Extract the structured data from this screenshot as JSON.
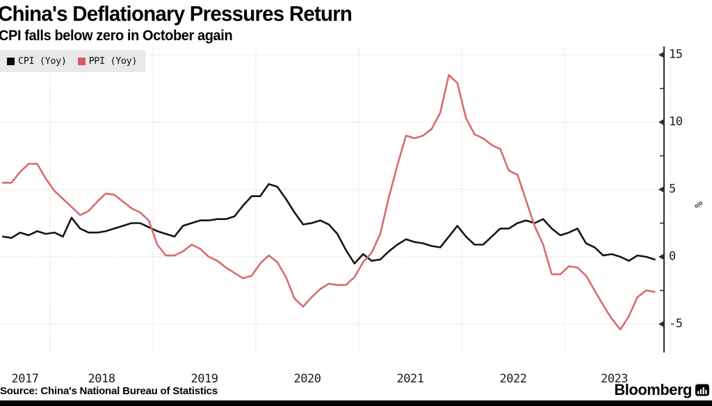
{
  "chart_data": {
    "type": "line",
    "title": "China's Deflationary Pressures Return",
    "subtitle": "CPI falls below zero in October again",
    "unit_label": "%",
    "frequency": "monthly",
    "x_start": "2017-06",
    "x_end": "2023-10",
    "x_year_labels": [
      "2017",
      "2018",
      "2019",
      "2020",
      "2021",
      "2022",
      "2023"
    ],
    "y_axis": {
      "side": "right",
      "major_ticks": [
        15,
        10,
        5,
        0,
        -5
      ],
      "major_tick_labels": [
        "15",
        "10",
        "5",
        "0",
        "-5"
      ],
      "minor_ticks": [
        12.5,
        7.5,
        2.5,
        -2.5
      ],
      "range": [
        -7.3,
        15.6
      ],
      "grid": "dotted"
    },
    "series": [
      {
        "name": "CPI (Yoy)",
        "color": "#141414",
        "values": [
          1.5,
          1.4,
          1.8,
          1.6,
          1.9,
          1.7,
          1.8,
          1.5,
          2.9,
          2.1,
          1.8,
          1.8,
          1.9,
          2.1,
          2.3,
          2.5,
          2.5,
          2.2,
          1.9,
          1.7,
          1.5,
          2.3,
          2.5,
          2.7,
          2.7,
          2.8,
          2.8,
          3.0,
          3.8,
          4.5,
          4.5,
          5.4,
          5.2,
          4.3,
          3.3,
          2.4,
          2.5,
          2.7,
          2.4,
          1.7,
          0.5,
          -0.5,
          0.2,
          -0.3,
          -0.2,
          0.4,
          0.9,
          1.3,
          1.1,
          1.0,
          0.8,
          0.7,
          1.5,
          2.3,
          1.5,
          0.9,
          0.9,
          1.5,
          2.1,
          2.1,
          2.5,
          2.7,
          2.5,
          2.8,
          2.1,
          1.6,
          1.8,
          2.1,
          1.0,
          0.7,
          0.1,
          0.2,
          0.0,
          -0.3,
          0.1,
          0.0,
          -0.2
        ]
      },
      {
        "name": "PPI (Yoy)",
        "color": "#d9696d",
        "values": [
          5.5,
          5.5,
          6.3,
          6.9,
          6.9,
          5.8,
          4.9,
          4.3,
          3.7,
          3.1,
          3.4,
          4.1,
          4.7,
          4.6,
          4.1,
          3.6,
          3.3,
          2.7,
          0.9,
          0.1,
          0.1,
          0.4,
          0.9,
          0.6,
          0.0,
          -0.3,
          -0.8,
          -1.2,
          -1.6,
          -1.4,
          -0.5,
          0.1,
          -0.4,
          -1.5,
          -3.1,
          -3.7,
          -3.0,
          -2.4,
          -2.0,
          -2.1,
          -2.1,
          -1.5,
          -0.4,
          0.3,
          1.7,
          4.4,
          6.8,
          9.0,
          8.8,
          9.0,
          9.5,
          10.7,
          13.5,
          12.9,
          10.3,
          9.1,
          8.8,
          8.3,
          8.0,
          6.4,
          6.1,
          4.2,
          2.3,
          0.9,
          -1.3,
          -1.3,
          -0.7,
          -0.8,
          -1.4,
          -2.5,
          -3.6,
          -4.6,
          -5.4,
          -4.4,
          -3.0,
          -2.5,
          -2.6
        ]
      }
    ],
    "legend_position": "top-left"
  },
  "legend": {
    "items": [
      {
        "label": "CPI (Yoy)",
        "color": "#0a0a0a"
      },
      {
        "label": "PPI (Yoy)",
        "color": "#d9595f"
      }
    ]
  },
  "style_colors": {
    "grid": "#c9c9c9",
    "axis": "#2b2b2b",
    "legend_background": "#e9e9e9"
  },
  "footer": {
    "source": "Source: China's National Bureau of Statistics",
    "brand": "Bloomberg",
    "brand_icon": "bloomberg-terminal-icon"
  }
}
